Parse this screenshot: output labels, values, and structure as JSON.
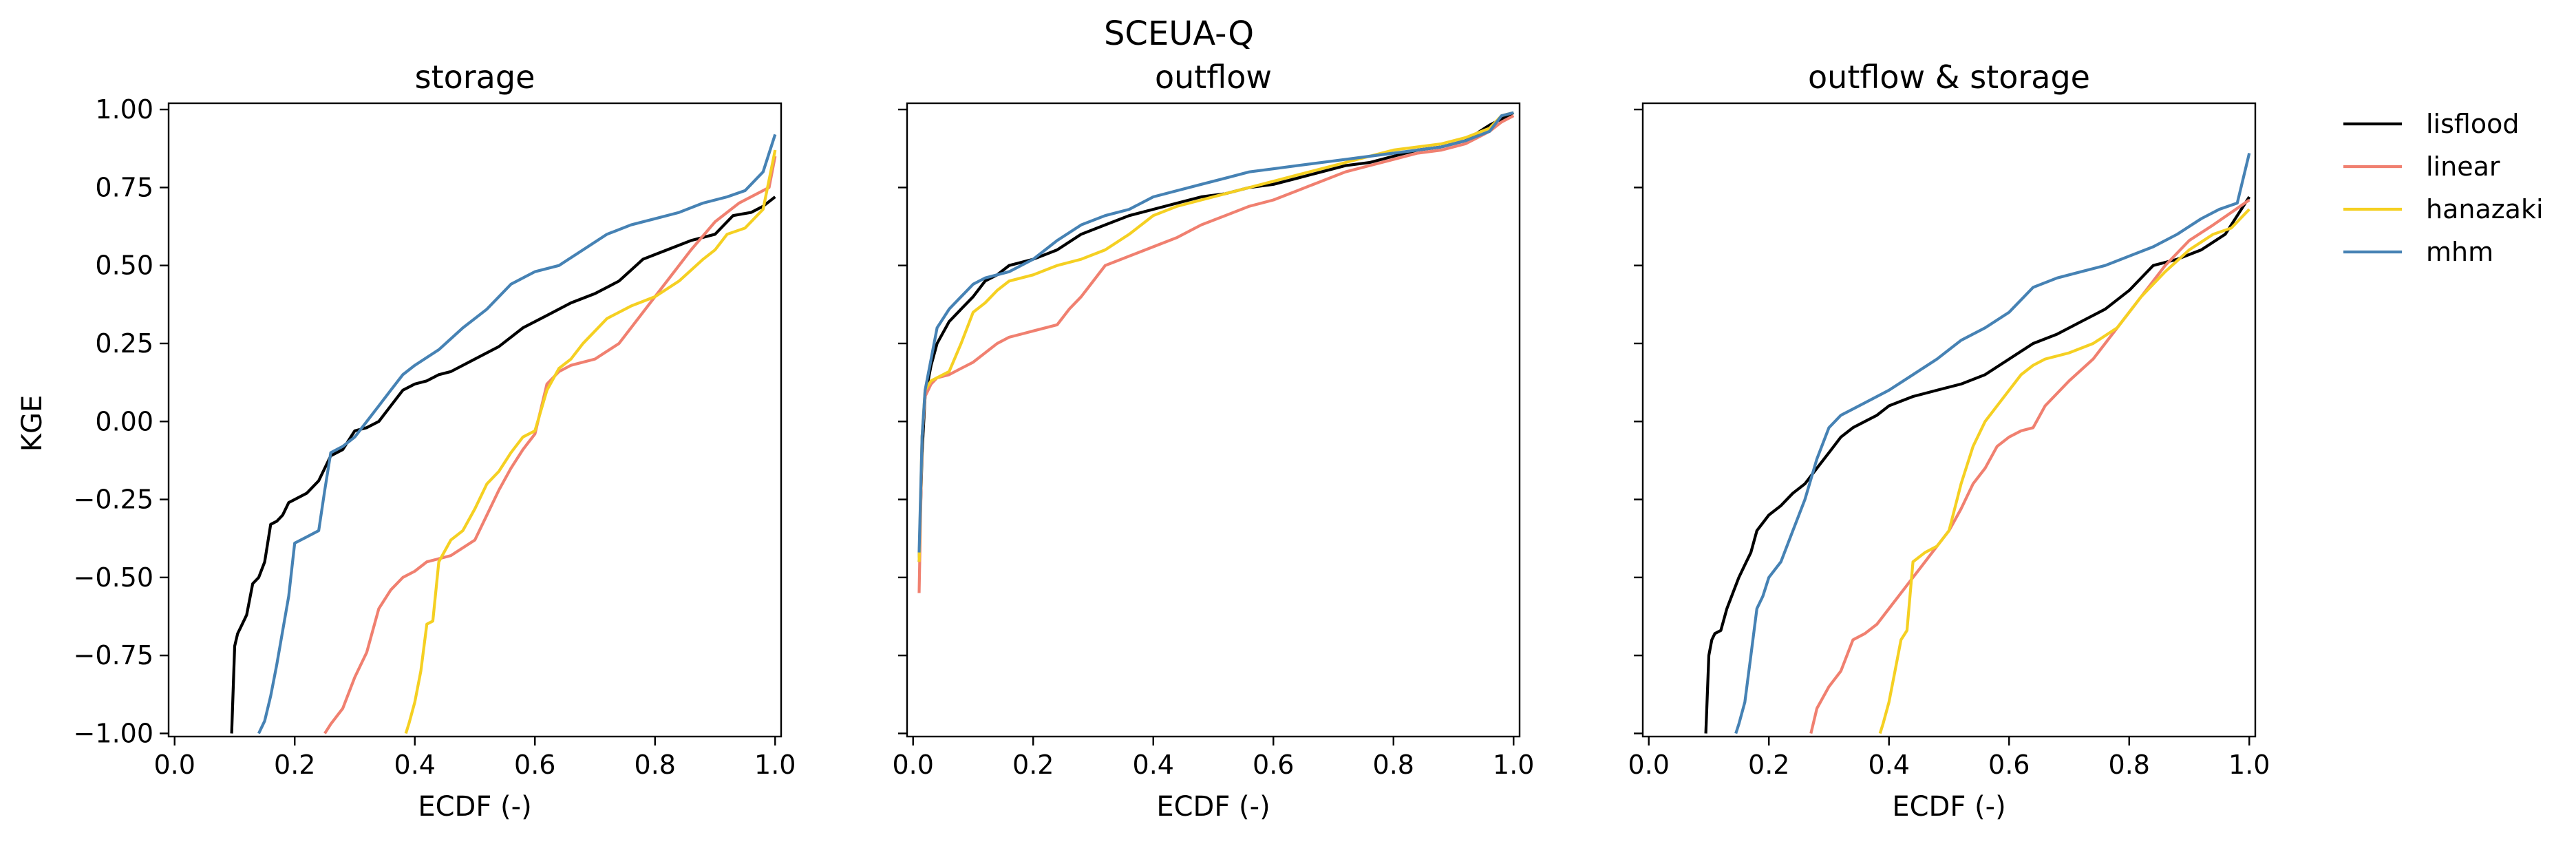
{
  "figure": {
    "title": "SCEUA-Q",
    "ylabel": "KGE"
  },
  "colors": {
    "lisflood": "#000000",
    "linear": "#f08070",
    "hanazaki": "#f5d022",
    "mhm": "#4682b4"
  },
  "legend": {
    "placement": "outside-right",
    "entries": [
      {
        "label": "lisflood",
        "color_key": "lisflood"
      },
      {
        "label": "linear",
        "color_key": "linear"
      },
      {
        "label": "hanazaki",
        "color_key": "hanazaki"
      },
      {
        "label": "mhm",
        "color_key": "mhm"
      }
    ]
  },
  "chart_data": [
    {
      "type": "line",
      "title": "storage",
      "xlabel": "ECDF (-)",
      "ylabel": "KGE",
      "xlim": [
        -0.01,
        1.01
      ],
      "ylim": [
        -1.01,
        1.02
      ],
      "xticks": [
        "0.0",
        "0.2",
        "0.4",
        "0.6",
        "0.8",
        "1.0"
      ],
      "yticks": [
        "−1.00",
        "−0.75",
        "−0.50",
        "−0.25",
        "0.00",
        "0.25",
        "0.50",
        "0.75",
        "1.00"
      ],
      "grid": false,
      "series": [
        {
          "name": "lisflood",
          "color_key": "lisflood",
          "x": [
            0.095,
            0.1,
            0.105,
            0.11,
            0.12,
            0.13,
            0.14,
            0.15,
            0.16,
            0.17,
            0.18,
            0.19,
            0.2,
            0.22,
            0.24,
            0.26,
            0.28,
            0.3,
            0.32,
            0.34,
            0.36,
            0.38,
            0.4,
            0.42,
            0.44,
            0.46,
            0.5,
            0.54,
            0.58,
            0.62,
            0.66,
            0.7,
            0.74,
            0.78,
            0.82,
            0.86,
            0.88,
            0.9,
            0.93,
            0.96,
            0.98,
            1.0
          ],
          "y": [
            -1.0,
            -0.72,
            -0.68,
            -0.66,
            -0.62,
            -0.52,
            -0.5,
            -0.45,
            -0.33,
            -0.32,
            -0.3,
            -0.26,
            -0.25,
            -0.23,
            -0.19,
            -0.11,
            -0.09,
            -0.03,
            -0.02,
            0.0,
            0.05,
            0.1,
            0.12,
            0.13,
            0.15,
            0.16,
            0.2,
            0.24,
            0.3,
            0.34,
            0.38,
            0.41,
            0.45,
            0.52,
            0.55,
            0.58,
            0.59,
            0.6,
            0.66,
            0.67,
            0.69,
            0.72
          ]
        },
        {
          "name": "linear",
          "color_key": "linear",
          "x": [
            0.25,
            0.26,
            0.28,
            0.3,
            0.32,
            0.34,
            0.36,
            0.38,
            0.4,
            0.42,
            0.44,
            0.46,
            0.5,
            0.52,
            0.54,
            0.56,
            0.58,
            0.6,
            0.62,
            0.64,
            0.66,
            0.7,
            0.74,
            0.78,
            0.82,
            0.86,
            0.9,
            0.94,
            0.97,
            0.99,
            1.0
          ],
          "y": [
            -1.0,
            -0.97,
            -0.92,
            -0.82,
            -0.74,
            -0.6,
            -0.54,
            -0.5,
            -0.48,
            -0.45,
            -0.44,
            -0.43,
            -0.38,
            -0.3,
            -0.22,
            -0.15,
            -0.09,
            -0.04,
            0.12,
            0.16,
            0.18,
            0.2,
            0.25,
            0.35,
            0.45,
            0.55,
            0.64,
            0.7,
            0.73,
            0.75,
            0.85
          ]
        },
        {
          "name": "hanazaki",
          "color_key": "hanazaki",
          "x": [
            0.385,
            0.39,
            0.4,
            0.41,
            0.42,
            0.43,
            0.44,
            0.46,
            0.48,
            0.5,
            0.52,
            0.54,
            0.56,
            0.58,
            0.6,
            0.62,
            0.64,
            0.66,
            0.68,
            0.72,
            0.76,
            0.8,
            0.84,
            0.88,
            0.9,
            0.92,
            0.95,
            0.98,
            1.0
          ],
          "y": [
            -1.0,
            -0.97,
            -0.9,
            -0.8,
            -0.65,
            -0.64,
            -0.45,
            -0.38,
            -0.35,
            -0.28,
            -0.2,
            -0.16,
            -0.1,
            -0.05,
            -0.03,
            0.1,
            0.17,
            0.2,
            0.25,
            0.33,
            0.37,
            0.4,
            0.45,
            0.52,
            0.55,
            0.6,
            0.62,
            0.68,
            0.87
          ]
        },
        {
          "name": "mhm",
          "color_key": "mhm",
          "x": [
            0.14,
            0.15,
            0.16,
            0.17,
            0.18,
            0.19,
            0.2,
            0.22,
            0.24,
            0.25,
            0.26,
            0.28,
            0.3,
            0.32,
            0.34,
            0.36,
            0.38,
            0.4,
            0.44,
            0.48,
            0.52,
            0.56,
            0.6,
            0.64,
            0.68,
            0.72,
            0.76,
            0.8,
            0.84,
            0.88,
            0.92,
            0.95,
            0.98,
            1.0
          ],
          "y": [
            -1.0,
            -0.96,
            -0.88,
            -0.78,
            -0.67,
            -0.56,
            -0.39,
            -0.37,
            -0.35,
            -0.22,
            -0.1,
            -0.08,
            -0.05,
            0.0,
            0.05,
            0.1,
            0.15,
            0.18,
            0.23,
            0.3,
            0.36,
            0.44,
            0.48,
            0.5,
            0.55,
            0.6,
            0.63,
            0.65,
            0.67,
            0.7,
            0.72,
            0.74,
            0.8,
            0.92
          ]
        }
      ]
    },
    {
      "type": "line",
      "title": "outflow",
      "xlabel": "ECDF (-)",
      "ylabel": "",
      "xlim": [
        -0.01,
        1.01
      ],
      "ylim": [
        -1.01,
        1.02
      ],
      "xticks": [
        "0.0",
        "0.2",
        "0.4",
        "0.6",
        "0.8",
        "1.0"
      ],
      "yticks": [
        "−1.00",
        "−0.75",
        "−0.50",
        "−0.25",
        "0.00",
        "0.25",
        "0.50",
        "0.75",
        "1.00"
      ],
      "grid": false,
      "series": [
        {
          "name": "lisflood",
          "color_key": "lisflood",
          "x": [
            0.01,
            0.015,
            0.02,
            0.03,
            0.04,
            0.06,
            0.08,
            0.1,
            0.12,
            0.14,
            0.16,
            0.2,
            0.24,
            0.28,
            0.32,
            0.36,
            0.4,
            0.44,
            0.48,
            0.52,
            0.56,
            0.6,
            0.64,
            0.68,
            0.72,
            0.76,
            0.8,
            0.84,
            0.88,
            0.92,
            0.96,
            0.98,
            1.0
          ],
          "y": [
            -0.45,
            -0.1,
            0.08,
            0.18,
            0.25,
            0.32,
            0.36,
            0.4,
            0.45,
            0.47,
            0.5,
            0.52,
            0.55,
            0.6,
            0.63,
            0.66,
            0.68,
            0.7,
            0.72,
            0.73,
            0.75,
            0.76,
            0.78,
            0.8,
            0.82,
            0.83,
            0.85,
            0.87,
            0.88,
            0.9,
            0.95,
            0.97,
            0.99
          ]
        },
        {
          "name": "linear",
          "color_key": "linear",
          "x": [
            0.01,
            0.015,
            0.02,
            0.03,
            0.04,
            0.06,
            0.08,
            0.1,
            0.12,
            0.14,
            0.16,
            0.18,
            0.2,
            0.24,
            0.26,
            0.28,
            0.3,
            0.32,
            0.36,
            0.4,
            0.44,
            0.48,
            0.52,
            0.56,
            0.6,
            0.64,
            0.68,
            0.72,
            0.76,
            0.8,
            0.84,
            0.88,
            0.92,
            0.96,
            0.98,
            1.0
          ],
          "y": [
            -0.55,
            -0.05,
            0.08,
            0.12,
            0.14,
            0.15,
            0.17,
            0.19,
            0.22,
            0.25,
            0.27,
            0.28,
            0.29,
            0.31,
            0.36,
            0.4,
            0.45,
            0.5,
            0.53,
            0.56,
            0.59,
            0.63,
            0.66,
            0.69,
            0.71,
            0.74,
            0.77,
            0.8,
            0.82,
            0.84,
            0.86,
            0.87,
            0.89,
            0.93,
            0.96,
            0.98
          ]
        },
        {
          "name": "hanazaki",
          "color_key": "hanazaki",
          "x": [
            0.01,
            0.015,
            0.02,
            0.03,
            0.04,
            0.06,
            0.08,
            0.1,
            0.12,
            0.14,
            0.16,
            0.2,
            0.24,
            0.28,
            0.32,
            0.36,
            0.4,
            0.44,
            0.48,
            0.52,
            0.56,
            0.6,
            0.64,
            0.68,
            0.72,
            0.76,
            0.8,
            0.84,
            0.88,
            0.92,
            0.96,
            0.98,
            1.0
          ],
          "y": [
            -0.45,
            -0.05,
            0.1,
            0.13,
            0.14,
            0.16,
            0.25,
            0.35,
            0.38,
            0.42,
            0.45,
            0.47,
            0.5,
            0.52,
            0.55,
            0.6,
            0.66,
            0.69,
            0.71,
            0.73,
            0.75,
            0.77,
            0.79,
            0.81,
            0.83,
            0.85,
            0.87,
            0.88,
            0.89,
            0.91,
            0.94,
            0.98,
            0.99
          ]
        },
        {
          "name": "mhm",
          "color_key": "mhm",
          "x": [
            0.01,
            0.015,
            0.02,
            0.03,
            0.04,
            0.06,
            0.08,
            0.1,
            0.12,
            0.16,
            0.2,
            0.24,
            0.28,
            0.32,
            0.36,
            0.4,
            0.44,
            0.48,
            0.52,
            0.56,
            0.6,
            0.64,
            0.68,
            0.72,
            0.76,
            0.8,
            0.84,
            0.88,
            0.92,
            0.96,
            0.98,
            1.0
          ],
          "y": [
            -0.42,
            -0.05,
            0.1,
            0.2,
            0.3,
            0.36,
            0.4,
            0.44,
            0.46,
            0.48,
            0.52,
            0.58,
            0.63,
            0.66,
            0.68,
            0.72,
            0.74,
            0.76,
            0.78,
            0.8,
            0.81,
            0.82,
            0.83,
            0.84,
            0.85,
            0.86,
            0.87,
            0.88,
            0.9,
            0.93,
            0.98,
            0.99
          ]
        }
      ]
    },
    {
      "type": "line",
      "title": "outflow & storage",
      "xlabel": "ECDF (-)",
      "ylabel": "",
      "xlim": [
        -0.01,
        1.01
      ],
      "ylim": [
        -1.01,
        1.02
      ],
      "xticks": [
        "0.0",
        "0.2",
        "0.4",
        "0.6",
        "0.8",
        "1.0"
      ],
      "yticks": [
        "−1.00",
        "−0.75",
        "−0.50",
        "−0.25",
        "0.00",
        "0.25",
        "0.50",
        "0.75",
        "1.00"
      ],
      "grid": false,
      "series": [
        {
          "name": "lisflood",
          "color_key": "lisflood",
          "x": [
            0.095,
            0.1,
            0.105,
            0.11,
            0.12,
            0.13,
            0.14,
            0.15,
            0.16,
            0.17,
            0.18,
            0.2,
            0.22,
            0.24,
            0.26,
            0.28,
            0.3,
            0.32,
            0.34,
            0.36,
            0.38,
            0.4,
            0.44,
            0.48,
            0.52,
            0.56,
            0.6,
            0.64,
            0.68,
            0.72,
            0.76,
            0.8,
            0.84,
            0.88,
            0.92,
            0.96,
            0.98,
            1.0
          ],
          "y": [
            -1.0,
            -0.75,
            -0.7,
            -0.68,
            -0.67,
            -0.6,
            -0.55,
            -0.5,
            -0.46,
            -0.42,
            -0.35,
            -0.3,
            -0.27,
            -0.23,
            -0.2,
            -0.15,
            -0.1,
            -0.05,
            -0.02,
            0.0,
            0.02,
            0.05,
            0.08,
            0.1,
            0.12,
            0.15,
            0.2,
            0.25,
            0.28,
            0.32,
            0.36,
            0.42,
            0.5,
            0.52,
            0.55,
            0.6,
            0.66,
            0.72
          ]
        },
        {
          "name": "linear",
          "color_key": "linear",
          "x": [
            0.27,
            0.28,
            0.3,
            0.32,
            0.34,
            0.36,
            0.38,
            0.4,
            0.42,
            0.44,
            0.46,
            0.48,
            0.5,
            0.52,
            0.54,
            0.56,
            0.58,
            0.6,
            0.62,
            0.64,
            0.66,
            0.7,
            0.74,
            0.78,
            0.82,
            0.86,
            0.9,
            0.94,
            0.97,
            1.0
          ],
          "y": [
            -1.0,
            -0.92,
            -0.85,
            -0.8,
            -0.7,
            -0.68,
            -0.65,
            -0.6,
            -0.55,
            -0.5,
            -0.45,
            -0.4,
            -0.35,
            -0.28,
            -0.2,
            -0.15,
            -0.08,
            -0.05,
            -0.03,
            -0.02,
            0.05,
            0.13,
            0.2,
            0.3,
            0.4,
            0.5,
            0.58,
            0.63,
            0.67,
            0.71
          ]
        },
        {
          "name": "hanazaki",
          "color_key": "hanazaki",
          "x": [
            0.385,
            0.39,
            0.4,
            0.41,
            0.42,
            0.43,
            0.44,
            0.46,
            0.48,
            0.5,
            0.52,
            0.54,
            0.56,
            0.58,
            0.6,
            0.62,
            0.64,
            0.66,
            0.7,
            0.74,
            0.78,
            0.82,
            0.86,
            0.9,
            0.94,
            0.97,
            1.0
          ],
          "y": [
            -1.0,
            -0.97,
            -0.9,
            -0.8,
            -0.7,
            -0.67,
            -0.45,
            -0.42,
            -0.4,
            -0.35,
            -0.2,
            -0.08,
            0.0,
            0.05,
            0.1,
            0.15,
            0.18,
            0.2,
            0.22,
            0.25,
            0.3,
            0.4,
            0.48,
            0.55,
            0.6,
            0.62,
            0.68
          ]
        },
        {
          "name": "mhm",
          "color_key": "mhm",
          "x": [
            0.145,
            0.15,
            0.16,
            0.17,
            0.18,
            0.19,
            0.2,
            0.22,
            0.24,
            0.26,
            0.28,
            0.3,
            0.32,
            0.36,
            0.4,
            0.44,
            0.48,
            0.52,
            0.56,
            0.6,
            0.64,
            0.68,
            0.72,
            0.76,
            0.8,
            0.84,
            0.88,
            0.92,
            0.95,
            0.98,
            1.0
          ],
          "y": [
            -1.0,
            -0.97,
            -0.9,
            -0.75,
            -0.6,
            -0.56,
            -0.5,
            -0.45,
            -0.35,
            -0.25,
            -0.12,
            -0.02,
            0.02,
            0.06,
            0.1,
            0.15,
            0.2,
            0.26,
            0.3,
            0.35,
            0.43,
            0.46,
            0.48,
            0.5,
            0.53,
            0.56,
            0.6,
            0.65,
            0.68,
            0.7,
            0.86
          ]
        }
      ]
    }
  ]
}
